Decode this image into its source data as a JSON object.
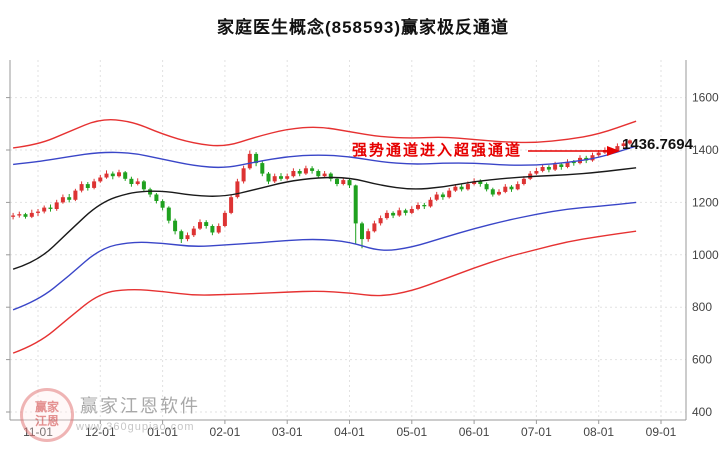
{
  "page": {
    "background": "#ffffff"
  },
  "watermark": {
    "brand": "赢家江恩软件",
    "url": "www.360gupiao.com",
    "logo_text": "赢家江恩"
  },
  "chart_data": {
    "type": "candlestick",
    "title": "家庭医生概念(858593)赢家极反通道",
    "xlabel": "",
    "ylabel": "",
    "annotation": "强势通道进入超强通道",
    "last_price": "1436.7694",
    "grid": true,
    "legend": "none",
    "x_axis": {
      "labels": [
        "11-01",
        "12-01",
        "01-01",
        "02-01",
        "03-01",
        "04-01",
        "05-01",
        "06-01",
        "07-01",
        "08-01",
        "09-01"
      ]
    },
    "y_axis": {
      "ticks": [
        400,
        600,
        800,
        1000,
        1200,
        1400,
        1600
      ],
      "range": [
        400,
        1760
      ]
    },
    "candles": {
      "x_start": -0.4,
      "x_step": 0.1,
      "up_color": "#dd3333",
      "down_color": "#1fa11f",
      "ohlc": [
        [
          1145,
          1160,
          1135,
          1150
        ],
        [
          1150,
          1165,
          1142,
          1155
        ],
        [
          1155,
          1160,
          1138,
          1145
        ],
        [
          1145,
          1172,
          1140,
          1160
        ],
        [
          1160,
          1175,
          1148,
          1165
        ],
        [
          1165,
          1188,
          1158,
          1180
        ],
        [
          1180,
          1192,
          1165,
          1175
        ],
        [
          1175,
          1210,
          1168,
          1200
        ],
        [
          1200,
          1230,
          1195,
          1220
        ],
        [
          1220,
          1232,
          1200,
          1210
        ],
        [
          1210,
          1252,
          1205,
          1245
        ],
        [
          1245,
          1280,
          1238,
          1270
        ],
        [
          1270,
          1278,
          1245,
          1255
        ],
        [
          1255,
          1290,
          1250,
          1280
        ],
        [
          1280,
          1305,
          1275,
          1295
        ],
        [
          1295,
          1322,
          1290,
          1310
        ],
        [
          1310,
          1318,
          1288,
          1300
        ],
        [
          1300,
          1325,
          1295,
          1315
        ],
        [
          1315,
          1320,
          1282,
          1290
        ],
        [
          1290,
          1298,
          1260,
          1270
        ],
        [
          1270,
          1292,
          1265,
          1280
        ],
        [
          1280,
          1285,
          1242,
          1250
        ],
        [
          1250,
          1256,
          1220,
          1230
        ],
        [
          1230,
          1236,
          1196,
          1205
        ],
        [
          1205,
          1212,
          1170,
          1180
        ],
        [
          1180,
          1185,
          1120,
          1130
        ],
        [
          1130,
          1138,
          1078,
          1090
        ],
        [
          1090,
          1096,
          1045,
          1060
        ],
        [
          1060,
          1085,
          1052,
          1075
        ],
        [
          1075,
          1110,
          1068,
          1100
        ],
        [
          1100,
          1135,
          1095,
          1125
        ],
        [
          1125,
          1132,
          1100,
          1110
        ],
        [
          1110,
          1116,
          1075,
          1085
        ],
        [
          1085,
          1120,
          1080,
          1110
        ],
        [
          1110,
          1168,
          1105,
          1160
        ],
        [
          1160,
          1228,
          1155,
          1220
        ],
        [
          1220,
          1290,
          1215,
          1280
        ],
        [
          1280,
          1340,
          1272,
          1330
        ],
        [
          1330,
          1398,
          1325,
          1385
        ],
        [
          1385,
          1392,
          1338,
          1350
        ],
        [
          1350,
          1356,
          1300,
          1310
        ],
        [
          1310,
          1316,
          1270,
          1280
        ],
        [
          1280,
          1310,
          1274,
          1300
        ],
        [
          1300,
          1312,
          1282,
          1290
        ],
        [
          1290,
          1310,
          1284,
          1300
        ],
        [
          1300,
          1330,
          1295,
          1320
        ],
        [
          1320,
          1328,
          1300,
          1310
        ],
        [
          1310,
          1340,
          1305,
          1330
        ],
        [
          1330,
          1338,
          1310,
          1320
        ],
        [
          1320,
          1326,
          1292,
          1300
        ],
        [
          1300,
          1320,
          1294,
          1310
        ],
        [
          1310,
          1315,
          1280,
          1290
        ],
        [
          1290,
          1296,
          1262,
          1270
        ],
        [
          1270,
          1294,
          1265,
          1285
        ],
        [
          1285,
          1292,
          1255,
          1265
        ],
        [
          1265,
          1268,
          1040,
          1120
        ],
        [
          1120,
          1126,
          1025,
          1060
        ],
        [
          1060,
          1100,
          1050,
          1090
        ],
        [
          1090,
          1130,
          1085,
          1120
        ],
        [
          1120,
          1150,
          1112,
          1140
        ],
        [
          1140,
          1170,
          1134,
          1160
        ],
        [
          1160,
          1166,
          1140,
          1150
        ],
        [
          1150,
          1180,
          1145,
          1170
        ],
        [
          1170,
          1176,
          1150,
          1160
        ],
        [
          1160,
          1185,
          1155,
          1175
        ],
        [
          1175,
          1200,
          1170,
          1190
        ],
        [
          1190,
          1198,
          1175,
          1185
        ],
        [
          1185,
          1220,
          1180,
          1210
        ],
        [
          1210,
          1240,
          1205,
          1230
        ],
        [
          1230,
          1238,
          1210,
          1220
        ],
        [
          1220,
          1255,
          1215,
          1245
        ],
        [
          1245,
          1270,
          1240,
          1260
        ],
        [
          1260,
          1268,
          1242,
          1250
        ],
        [
          1250,
          1280,
          1245,
          1270
        ],
        [
          1270,
          1292,
          1265,
          1280
        ],
        [
          1280,
          1288,
          1260,
          1270
        ],
        [
          1270,
          1276,
          1242,
          1250
        ],
        [
          1250,
          1256,
          1222,
          1230
        ],
        [
          1230,
          1250,
          1225,
          1240
        ],
        [
          1240,
          1270,
          1235,
          1260
        ],
        [
          1260,
          1266,
          1240,
          1250
        ],
        [
          1250,
          1280,
          1246,
          1270
        ],
        [
          1270,
          1300,
          1265,
          1290
        ],
        [
          1290,
          1320,
          1285,
          1310
        ],
        [
          1310,
          1332,
          1305,
          1320
        ],
        [
          1320,
          1345,
          1315,
          1335
        ],
        [
          1335,
          1342,
          1315,
          1325
        ],
        [
          1325,
          1355,
          1320,
          1345
        ],
        [
          1345,
          1352,
          1325,
          1335
        ],
        [
          1335,
          1365,
          1330,
          1355
        ],
        [
          1355,
          1362,
          1340,
          1350
        ],
        [
          1350,
          1380,
          1345,
          1370
        ],
        [
          1370,
          1378,
          1350,
          1360
        ],
        [
          1360,
          1390,
          1355,
          1380
        ],
        [
          1380,
          1400,
          1375,
          1390
        ],
        [
          1390,
          1410,
          1385,
          1400
        ],
        [
          1400,
          1408,
          1388,
          1395
        ],
        [
          1395,
          1425,
          1392,
          1415
        ],
        [
          1415,
          1432,
          1410,
          1425
        ],
        [
          1425,
          1440,
          1420,
          1436.7694
        ]
      ]
    },
    "lines": {
      "x": [
        -0.4,
        0,
        0.5,
        1,
        1.5,
        2,
        2.5,
        3,
        3.5,
        4,
        4.5,
        5,
        5.5,
        6,
        6.5,
        7,
        7.5,
        8,
        8.5,
        9,
        9.6
      ],
      "series": [
        {
          "name": "channel-outer-top",
          "color": "#e63232",
          "values": [
            1408,
            1420,
            1470,
            1520,
            1510,
            1460,
            1425,
            1412,
            1450,
            1480,
            1490,
            1470,
            1450,
            1445,
            1450,
            1440,
            1430,
            1428,
            1440,
            1460,
            1510
          ]
        },
        {
          "name": "channel-upper-blue",
          "color": "#3a46c8",
          "values": [
            1345,
            1355,
            1375,
            1392,
            1390,
            1365,
            1340,
            1330,
            1355,
            1375,
            1382,
            1375,
            1355,
            1345,
            1350,
            1350,
            1342,
            1342,
            1352,
            1370,
            1415
          ]
        },
        {
          "name": "channel-middle-black",
          "color": "#1a1a1a",
          "values": [
            945,
            975,
            1090,
            1200,
            1240,
            1245,
            1225,
            1222,
            1250,
            1280,
            1295,
            1295,
            1265,
            1248,
            1258,
            1280,
            1292,
            1300,
            1305,
            1315,
            1332
          ]
        },
        {
          "name": "channel-lower-blue",
          "color": "#3a46c8",
          "values": [
            790,
            825,
            920,
            1025,
            1050,
            1045,
            1030,
            1038,
            1045,
            1055,
            1060,
            1050,
            1012,
            1028,
            1065,
            1100,
            1130,
            1155,
            1175,
            1185,
            1200
          ]
        },
        {
          "name": "channel-outer-bottom",
          "color": "#e63232",
          "values": [
            625,
            660,
            760,
            855,
            870,
            860,
            845,
            848,
            852,
            858,
            862,
            855,
            840,
            862,
            905,
            950,
            990,
            1020,
            1050,
            1070,
            1090
          ]
        }
      ]
    }
  }
}
